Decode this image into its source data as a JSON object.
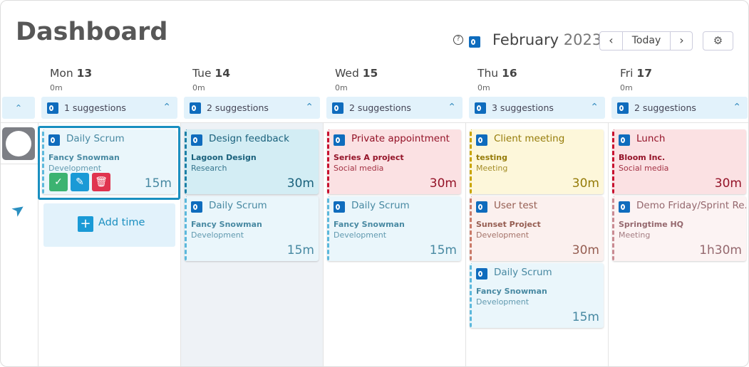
{
  "header": {
    "title": "Dashboard",
    "month": "February",
    "year": "2023",
    "today": "Today"
  },
  "add_time": "Add time",
  "days": [
    {
      "weekday": "Mon",
      "date": "13",
      "total": "0m",
      "suggestions": "1 suggestions",
      "cards": [
        {
          "title": "Daily Scrum",
          "project": "Fancy Snowman",
          "category": "Development",
          "duration": "15m",
          "color": "#5bb8dc",
          "background": "#eaf6fb",
          "selected": true
        }
      ]
    },
    {
      "weekday": "Tue",
      "date": "14",
      "total": "0m",
      "suggestions": "2 suggestions",
      "cards": [
        {
          "title": "Design feedback",
          "project": "Lagoon Design",
          "category": "Research",
          "duration": "30m",
          "color": "#1a7fa6",
          "background": "#d3edf4"
        },
        {
          "title": "Daily Scrum",
          "project": "Fancy Snowman",
          "category": "Development",
          "duration": "15m",
          "color": "#5bb8dc",
          "background": "#eaf6fb"
        }
      ]
    },
    {
      "weekday": "Wed",
      "date": "15",
      "total": "0m",
      "suggestions": "2 suggestions",
      "cards": [
        {
          "title": "Private appointment",
          "project": "Series A project",
          "category": "Social media",
          "duration": "30m",
          "color": "#c8102e",
          "background": "#fbe1e3"
        },
        {
          "title": "Daily Scrum",
          "project": "Fancy Snowman",
          "category": "Development",
          "duration": "15m",
          "color": "#5bb8dc",
          "background": "#eaf6fb"
        }
      ]
    },
    {
      "weekday": "Thu",
      "date": "16",
      "total": "0m",
      "suggestions": "3 suggestions",
      "cards": [
        {
          "title": "Client meeting",
          "project": "testing",
          "category": "Meeting",
          "duration": "30m",
          "color": "#c9a400",
          "background": "#fdf7da"
        },
        {
          "title": "User test",
          "project": "Sunset Project",
          "category": "Development",
          "duration": "30m",
          "color": "#c97a68",
          "background": "#fbf0ee"
        },
        {
          "title": "Daily Scrum",
          "project": "Fancy Snowman",
          "category": "Development",
          "duration": "15m",
          "color": "#5bb8dc",
          "background": "#eaf6fb"
        }
      ]
    },
    {
      "weekday": "Fri",
      "date": "17",
      "total": "0m",
      "suggestions": "2 suggestions",
      "cards": [
        {
          "title": "Lunch",
          "project": "Bloom Inc.",
          "category": "Social media",
          "duration": "30m",
          "color": "#c8102e",
          "background": "#fbe1e3"
        },
        {
          "title": "Demo Friday/Sprint Re...",
          "project": "Springtime HQ",
          "category": "Meeting",
          "duration": "1h30m",
          "color": "#c98a92",
          "background": "#fcf3f3"
        }
      ]
    }
  ]
}
